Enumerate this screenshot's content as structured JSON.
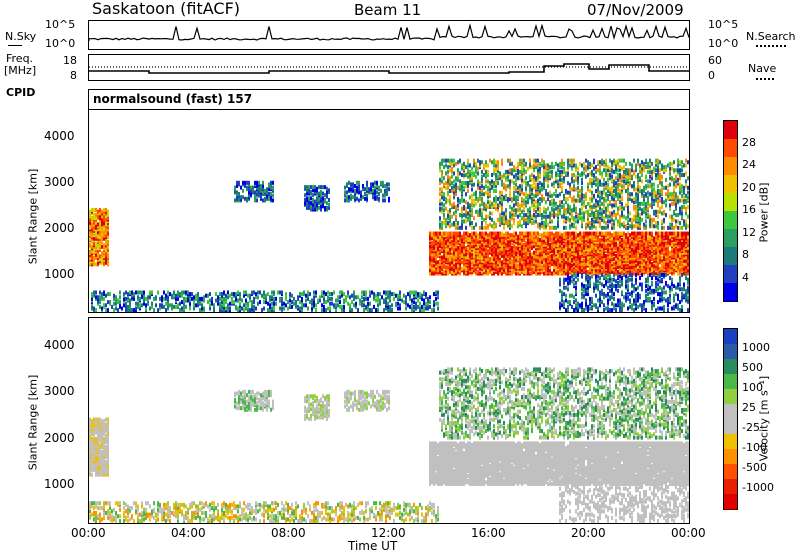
{
  "header": {
    "station": "Saskatoon (fitACF)",
    "beam": "Beam 11",
    "date": "07/Nov/2009"
  },
  "top_panel": {
    "left_label": "N.Sky",
    "left_ticks": [
      "10^5",
      "10^0"
    ],
    "right_label": "N.Search",
    "right_ticks": [
      "10^5",
      "10^0"
    ]
  },
  "freq_panel": {
    "left_label_1": "Freq.",
    "left_label_2": "[MHz]",
    "left_ticks": [
      "18",
      "8"
    ],
    "right_label": "Nave",
    "right_ticks": [
      "60",
      "0"
    ],
    "cpid_label": "CPID",
    "cpid_text": "normalsound (fast) 157"
  },
  "chart_data": [
    {
      "type": "heatmap",
      "title": "",
      "xlabel": "Time UT",
      "ylabel": "Slant Range [km]",
      "x_ticks": [
        "00:00",
        "04:00",
        "08:00",
        "12:00",
        "16:00",
        "20:00",
        "00:00"
      ],
      "y_ticks": [
        1000,
        2000,
        3000,
        4000
      ],
      "ylim": [
        180,
        4600
      ],
      "colorbar_label": "Power [dB]",
      "colorbar_ticks": [
        "28",
        "24",
        "20",
        "16",
        "12",
        "8",
        "4"
      ],
      "colorbar_colors": [
        "#e0000a",
        "#ff4a00",
        "#ff8c00",
        "#f0c000",
        "#b8e000",
        "#3cc83c",
        "#2aa060",
        "#1c7a7a",
        "#2040c0",
        "#0000e8"
      ]
    },
    {
      "type": "heatmap",
      "title": "",
      "xlabel": "Time UT",
      "ylabel": "Slant Range [km]",
      "x_ticks": [
        "00:00",
        "04:00",
        "08:00",
        "12:00",
        "16:00",
        "20:00",
        "00:00"
      ],
      "y_ticks": [
        1000,
        2000,
        3000,
        4000
      ],
      "ylim": [
        180,
        4600
      ],
      "colorbar_label": "Velocity [m s⁻¹]",
      "colorbar_ticks": [
        "1000",
        "500",
        "100",
        "25",
        "-25",
        "-100",
        "-500",
        "-1000"
      ],
      "colorbar_colors": [
        "#1840c0",
        "#2a5aa8",
        "#2a8a60",
        "#48b848",
        "#90d040",
        "#c0c0c0",
        "#c0c0c0",
        "#f0c000",
        "#ff9000",
        "#ff5000",
        "#e82000",
        "#e00000"
      ]
    }
  ]
}
